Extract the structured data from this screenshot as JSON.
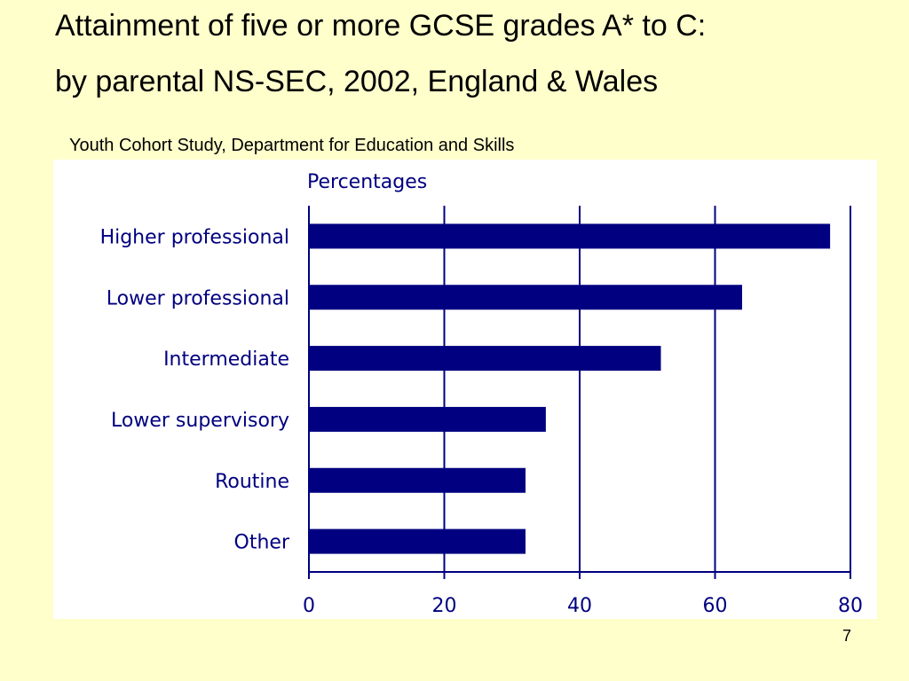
{
  "slide": {
    "title_line1": "Attainment of five or more GCSE grades A* to C:",
    "title_line2": "by parental NS-SEC, 2002, England & Wales",
    "source": "Youth Cohort Study, Department for Education and Skills",
    "page_number": "7"
  },
  "colors": {
    "background": "#ffffcc",
    "bar": "#000080",
    "axis_text": "#000080"
  },
  "chart_data": {
    "type": "bar",
    "orientation": "horizontal",
    "title": "Percentages",
    "categories": [
      "Higher professional",
      "Lower professional",
      "Intermediate",
      "Lower supervisory",
      "Routine",
      "Other"
    ],
    "values": [
      77,
      64,
      52,
      35,
      32,
      32
    ],
    "xlim": [
      0,
      80
    ],
    "xticks": [
      0,
      20,
      40,
      60,
      80
    ],
    "xlabel": "",
    "ylabel": "",
    "grid": "vertical",
    "legend": "none"
  }
}
